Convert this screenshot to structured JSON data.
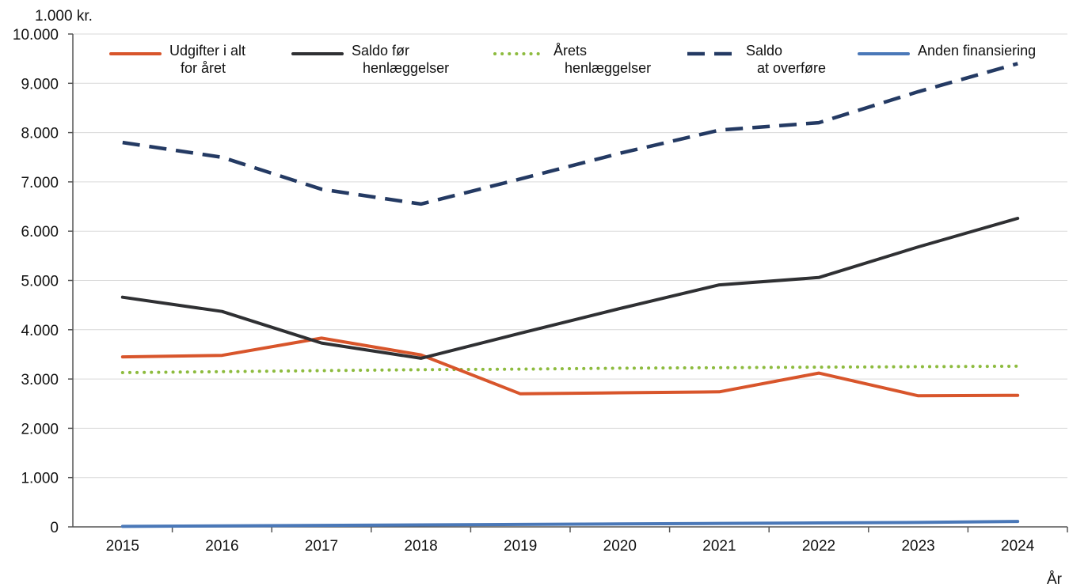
{
  "chart_data": {
    "type": "line",
    "ylabel": "1.000 kr.",
    "xlabel": "År",
    "categories": [
      "2015",
      "2016",
      "2017",
      "2018",
      "2019",
      "2020",
      "2021",
      "2022",
      "2023",
      "2024"
    ],
    "ylim": [
      0,
      10000
    ],
    "yticks": [
      0,
      1000,
      2000,
      3000,
      4000,
      5000,
      6000,
      7000,
      8000,
      9000,
      10000
    ],
    "ytick_labels": [
      "0",
      "1.000",
      "2.000",
      "3.000",
      "4.000",
      "5.000",
      "6.000",
      "7.000",
      "8.000",
      "9.000",
      "10.000"
    ],
    "grid": true,
    "legend_position": "top",
    "series": [
      {
        "name": "Udgifter i alt\nfor året",
        "color": "#d8552b",
        "style": "solid",
        "values": [
          3450,
          3480,
          3830,
          3490,
          2700,
          2720,
          2740,
          3120,
          2660,
          2670
        ]
      },
      {
        "name": "Saldo før\nhenlæggelser",
        "color": "#2f3033",
        "style": "solid",
        "values": [
          4660,
          4370,
          3730,
          3420,
          3930,
          4430,
          4910,
          5060,
          5680,
          6260
        ]
      },
      {
        "name": "Årets\nhenlæggelser",
        "color": "#8dbb3e",
        "style": "dotted",
        "values": [
          3130,
          3150,
          3170,
          3190,
          3200,
          3220,
          3230,
          3240,
          3250,
          3260
        ]
      },
      {
        "name": "Saldo\nat overføre",
        "color": "#243a63",
        "style": "dashed",
        "values": [
          7800,
          7500,
          6850,
          6550,
          7060,
          7580,
          8050,
          8200,
          8830,
          9400
        ]
      },
      {
        "name": "Anden finansiering",
        "color": "#4a78b8",
        "style": "solid",
        "values": [
          10,
          20,
          30,
          40,
          50,
          60,
          70,
          80,
          90,
          110
        ]
      }
    ]
  }
}
